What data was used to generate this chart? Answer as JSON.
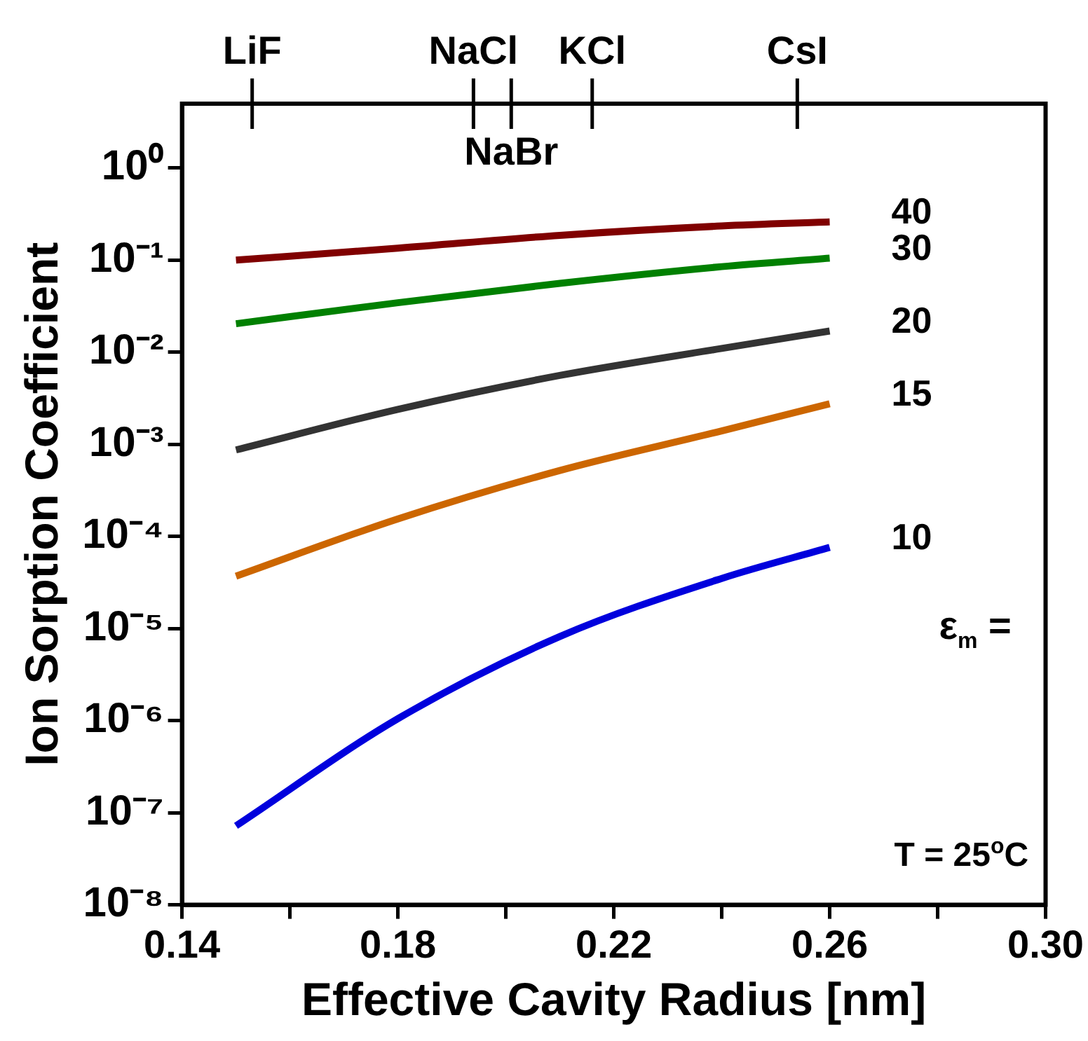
{
  "chart_data": {
    "type": "line",
    "xlabel": "Effective Cavity Radius [nm]",
    "ylabel": "Ion Sorption Coefficient",
    "legend_title": "ε$_{m}$ =",
    "annotations": [
      "T = 25$^{o}$C"
    ],
    "ref_lines": [
      {
        "axis": "x",
        "value": 0.153,
        "label": "LiF"
      },
      {
        "axis": "x",
        "value": 0.194,
        "label": "NaCl"
      },
      {
        "axis": "x",
        "value": 0.201,
        "label": "NaBr"
      },
      {
        "axis": "x",
        "value": 0.216,
        "label": "KCl"
      },
      {
        "axis": "x",
        "value": 0.254,
        "label": "CsI"
      }
    ],
    "log": "y",
    "grid": false,
    "legend": false,
    "marker": "none",
    "line_style": "solid",
    "xlim": [
      0.14,
      0.3
    ],
    "xticks": [
      0.14,
      {
        "value": 0.16,
        "label": null
      },
      0.18,
      {
        "value": 0.2,
        "label": null
      },
      0.22,
      {
        "value": 0.24,
        "label": null
      },
      0.26,
      {
        "value": 0.28,
        "label": null
      },
      {
        "value": 0.3,
        "label": "0.30"
      }
    ],
    "ylim": [
      1e-08,
      5
    ],
    "yticks": [
      {
        "value": 1e-08,
        "label": "10⁻⁸"
      },
      {
        "value": 1e-07,
        "label": "10⁻⁷"
      },
      {
        "value": 1e-06,
        "label": "10⁻⁶"
      },
      {
        "value": 1e-05,
        "label": "10⁻⁵"
      },
      {
        "value": 0.0001,
        "label": "10⁻⁴"
      },
      {
        "value": 0.001,
        "label": "10⁻³"
      },
      {
        "value": 0.01,
        "label": "10⁻²"
      },
      {
        "value": 0.1,
        "label": "10⁻¹"
      },
      {
        "value": 1,
        "label": "10⁰"
      }
    ],
    "x": [
      0.15,
      0.18,
      0.21,
      0.24,
      0.26
    ],
    "series": [
      {
        "name": "40",
        "color": "#800000",
        "values": [
          0.1,
          0.135,
          0.186,
          0.235,
          0.26
        ]
      },
      {
        "name": "30",
        "color": "#008000",
        "values": [
          0.0204,
          0.0345,
          0.056,
          0.085,
          0.105
        ]
      },
      {
        "name": "20",
        "color": "#333333",
        "values": [
          0.00087,
          0.0024,
          0.0056,
          0.011,
          0.017
        ]
      },
      {
        "name": "15",
        "color": "#cc6600",
        "values": [
          3.7e-05,
          0.000155,
          0.00052,
          0.0014,
          0.00276
        ]
      },
      {
        "name": "10",
        "color": "#0000dd",
        "values": [
          7.2e-08,
          1.05e-06,
          8.2e-06,
          3.5e-05,
          7.6e-05
        ]
      }
    ]
  }
}
